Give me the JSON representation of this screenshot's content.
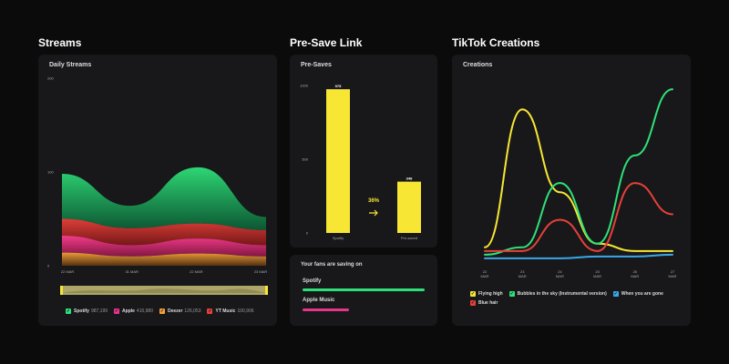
{
  "sections": {
    "streams": "Streams",
    "presave": "Pre-Save Link",
    "tiktok": "TikTok Creations"
  },
  "panels": {
    "daily_streams": "Daily Streams",
    "pre_saves": "Pre-Saves",
    "saving_on": "Your fans are saving on",
    "creations": "Creations"
  },
  "saving_on": {
    "items": [
      {
        "label": "Spotify",
        "fraction": 1.0,
        "color": "#2fe079"
      },
      {
        "label": "Apple Music",
        "fraction": 0.38,
        "color": "#e8348b"
      }
    ]
  },
  "chart_data": [
    {
      "type": "area",
      "title": "Daily Streams",
      "x": [
        "22 MAR",
        "31 MAR",
        "22 MAR",
        "23 MAR"
      ],
      "y_ticks": [
        "200",
        "100",
        "0"
      ],
      "ylim": [
        0,
        200
      ],
      "series": [
        {
          "name": "Spotify",
          "total": "987,199",
          "color": "#2fe079",
          "values": [
            48,
            24,
            60,
            14
          ]
        },
        {
          "name": "Apple",
          "total": "410,980",
          "color": "#e8348b",
          "values": [
            18,
            12,
            16,
            12
          ]
        },
        {
          "name": "Deezer",
          "total": "126,053",
          "color": "#f4a23a",
          "values": [
            14,
            10,
            13,
            10
          ]
        },
        {
          "name": "YT Music",
          "total": "100,906",
          "color": "#e8403a",
          "values": [
            18,
            18,
            16,
            16
          ]
        }
      ]
    },
    {
      "type": "bar",
      "title": "Pre-Saves",
      "categories": [
        "Spotify",
        "Pre-saved"
      ],
      "values": [
        975,
        348
      ],
      "value_labels": [
        "975",
        "348"
      ],
      "y_ticks": [
        "1000",
        "500",
        "0"
      ],
      "ylim": [
        0,
        1000
      ],
      "conversion_label": "36%",
      "color": "#f7e633"
    },
    {
      "type": "line",
      "title": "Creations",
      "x": [
        "22\nMAR",
        "23\nMAR",
        "24\nMAR",
        "25\nMAR",
        "26\nMAR",
        "27\nMAR"
      ],
      "series": [
        {
          "name": "Flying high",
          "color": "#f7e633",
          "values": [
            10,
            85,
            40,
            12,
            8,
            8
          ]
        },
        {
          "name": "Bubbles in the sky (Instrumental version)",
          "color": "#2fe079",
          "values": [
            6,
            10,
            45,
            12,
            60,
            96
          ]
        },
        {
          "name": "When you are gone",
          "color": "#3aa8e8",
          "values": [
            4,
            4,
            4,
            5,
            5,
            6
          ]
        },
        {
          "name": "Blue hair",
          "color": "#e8403a",
          "values": [
            8,
            8,
            25,
            8,
            45,
            28
          ]
        }
      ]
    }
  ]
}
